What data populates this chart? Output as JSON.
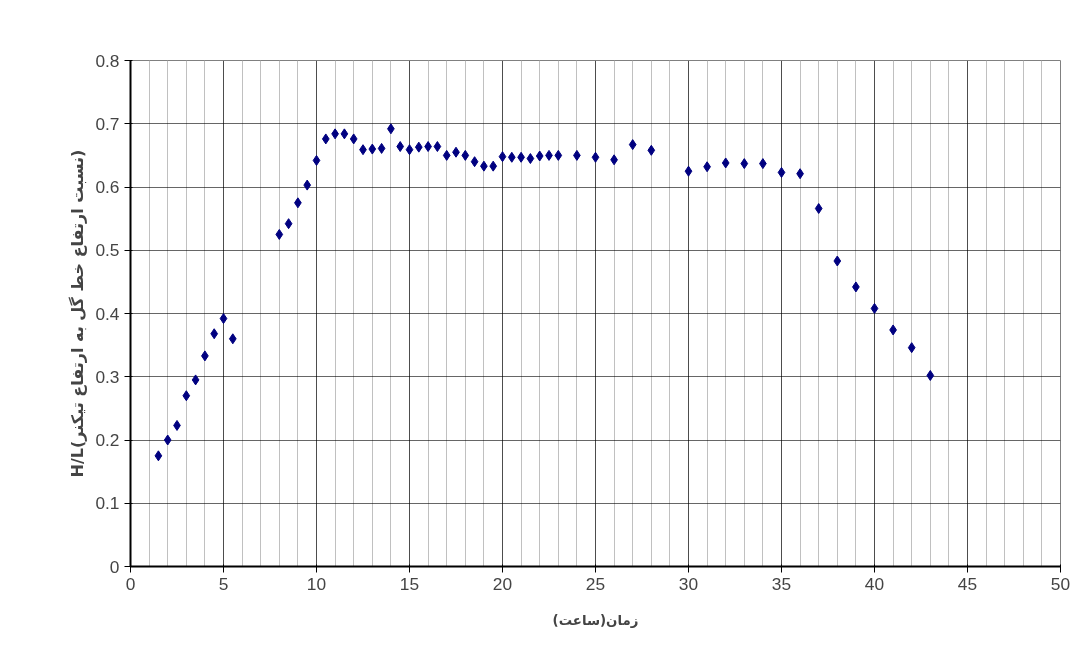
{
  "chart_data": {
    "type": "scatter",
    "xlabel": "زمان(ساعت)",
    "ylabel": "H/L(نسبت ارتفاع خط گل به ارتفاع تیکنر)",
    "x": [
      1.5,
      2,
      2.5,
      3,
      3.5,
      4,
      4.5,
      5,
      5.5,
      8,
      8.5,
      9,
      9.5,
      10,
      10.5,
      11,
      11.5,
      12,
      12.5,
      13,
      13.5,
      14,
      14.5,
      15,
      15.5,
      16,
      16.5,
      17,
      17.5,
      18,
      18.5,
      19,
      19.5,
      20,
      20.5,
      21,
      21.5,
      22,
      22.5,
      23,
      24,
      25,
      26,
      27,
      28,
      30,
      31,
      32,
      33,
      34,
      35,
      36,
      37,
      38,
      39,
      40,
      41,
      42,
      43
    ],
    "series": [
      {
        "color": "#000080",
        "values": [
          0.175,
          0.2,
          0.223,
          0.27,
          0.295,
          0.333,
          0.368,
          0.392,
          0.36,
          0.525,
          0.542,
          0.575,
          0.603,
          0.642,
          0.676,
          0.684,
          0.684,
          0.676,
          0.659,
          0.66,
          0.661,
          0.692,
          0.664,
          0.659,
          0.663,
          0.664,
          0.664,
          0.65,
          0.655,
          0.65,
          0.64,
          0.633,
          0.633,
          0.648,
          0.647,
          0.647,
          0.645,
          0.649,
          0.65,
          0.65,
          0.65,
          0.647,
          0.643,
          0.667,
          0.658,
          0.625,
          0.632,
          0.638,
          0.637,
          0.637,
          0.623,
          0.621,
          0.566,
          0.483,
          0.442,
          0.408,
          0.374,
          0.346,
          0.302
        ]
      }
    ],
    "marker": "diamond",
    "xlim": [
      0,
      50
    ],
    "ylim": [
      0,
      0.8
    ],
    "xticks": [
      0,
      5,
      10,
      15,
      20,
      25,
      30,
      35,
      40,
      45,
      50
    ],
    "yticks": [
      0,
      {
        "value": 0.1,
        "label": "0.1"
      },
      {
        "value": 0.2,
        "label": "0.2"
      },
      {
        "value": 0.3,
        "label": "0.3"
      },
      {
        "value": 0.4,
        "label": "0.4"
      },
      {
        "value": 0.5,
        "label": "0.5"
      },
      {
        "value": 0.6,
        "label": "0.6"
      },
      {
        "value": 0.7,
        "label": "0.7"
      },
      {
        "value": 0.8,
        "label": "0.8"
      }
    ],
    "grid": true
  }
}
